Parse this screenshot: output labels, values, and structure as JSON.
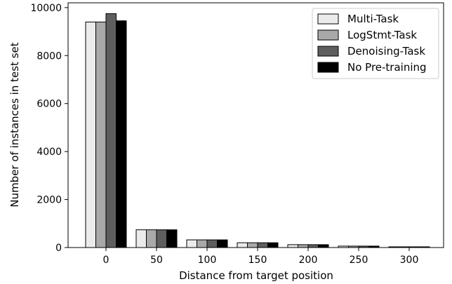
{
  "chart_data": {
    "type": "bar",
    "title": "",
    "xlabel": "Distance from target position",
    "ylabel": "Number of instances in test set",
    "categories": [
      "0",
      "50",
      "100",
      "150",
      "200",
      "250",
      "300"
    ],
    "ylim": [
      0,
      10200
    ],
    "yticks": [
      "0",
      "2000",
      "4000",
      "6000",
      "8000",
      "10000"
    ],
    "grid": false,
    "legend_position": "top-right",
    "series": [
      {
        "name": "Multi-Task",
        "color": "#ebebeb",
        "values": [
          9400,
          740,
          320,
          200,
          120,
          60,
          30
        ]
      },
      {
        "name": "LogStmt-Task",
        "color": "#a9a9a9",
        "values": [
          9400,
          740,
          320,
          200,
          120,
          60,
          30
        ]
      },
      {
        "name": "Denoising-Task",
        "color": "#5e5e5e",
        "values": [
          9750,
          740,
          320,
          200,
          120,
          60,
          30
        ]
      },
      {
        "name": "No Pre-training",
        "color": "#000000",
        "values": [
          9450,
          740,
          320,
          200,
          120,
          60,
          30
        ]
      }
    ]
  }
}
